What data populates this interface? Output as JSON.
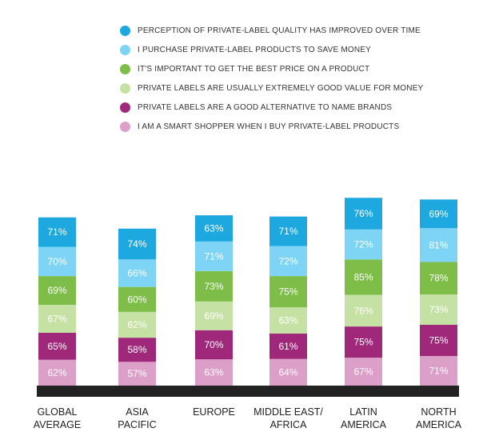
{
  "colors": [
    "#1ea8e0",
    "#7dd4f4",
    "#7dbd48",
    "#c6e1a4",
    "#a0287a",
    "#dc9fc7"
  ],
  "chart_data": {
    "type": "bar",
    "stacked": true,
    "categories": [
      "GLOBAL AVERAGE",
      "ASIA PACIFIC",
      "EUROPE",
      "MIDDLE EAST/ AFRICA",
      "LATIN AMERICA",
      "NORTH AMERICA"
    ],
    "category_lines": [
      [
        "GLOBAL",
        "AVERAGE"
      ],
      [
        "ASIA",
        "PACIFIC"
      ],
      [
        "EUROPE"
      ],
      [
        "MIDDLE EAST/",
        "AFRICA"
      ],
      [
        "LATIN",
        "AMERICA"
      ],
      [
        "NORTH",
        "AMERICA"
      ]
    ],
    "series": [
      {
        "name": "PERCEPTION OF PRIVATE-LABEL QUALITY HAS IMPROVED OVER TIME",
        "values": [
          71,
          74,
          63,
          71,
          76,
          69
        ]
      },
      {
        "name": "I PURCHASE PRIVATE-LABEL PRODUCTS TO SAVE MONEY",
        "values": [
          70,
          66,
          71,
          72,
          72,
          81
        ]
      },
      {
        "name": "IT'S IMPORTANT TO GET THE BEST PRICE ON A PRODUCT",
        "values": [
          69,
          60,
          73,
          75,
          85,
          78
        ]
      },
      {
        "name": "PRIVATE LABELS ARE USUALLY EXTREMELY GOOD VALUE FOR MONEY",
        "values": [
          67,
          62,
          69,
          63,
          76,
          73
        ]
      },
      {
        "name": "PRIVATE LABELS ARE A GOOD ALTERNATIVE TO NAME BRANDS",
        "values": [
          65,
          58,
          70,
          61,
          75,
          75
        ]
      },
      {
        "name": "I AM A SMART SHOPPER WHEN I BUY PRIVATE-LABEL PRODUCTS",
        "values": [
          62,
          57,
          63,
          64,
          67,
          71
        ]
      }
    ],
    "value_suffix": "%",
    "legend": "top",
    "grid": false
  }
}
